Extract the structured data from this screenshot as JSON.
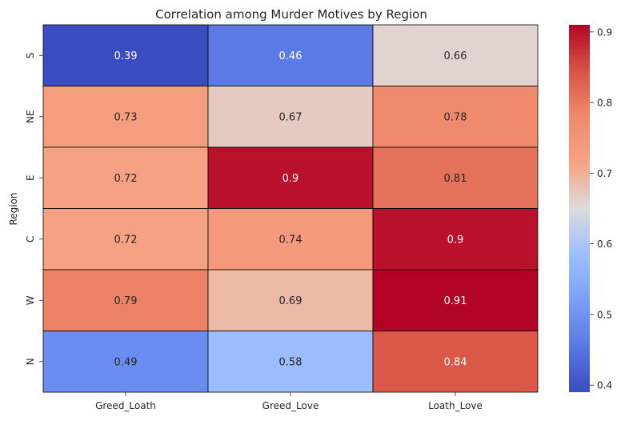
{
  "chart_data": {
    "type": "heatmap",
    "title": "Correlation among Murder Motives by Region",
    "xlabel": "",
    "ylabel": "Region",
    "x_categories": [
      "Greed_Loath",
      "Greed_Love",
      "Loath_Love"
    ],
    "y_categories": [
      "S",
      "NE",
      "E",
      "C",
      "W",
      "N"
    ],
    "values": [
      [
        0.39,
        0.46,
        0.66
      ],
      [
        0.73,
        0.67,
        0.78
      ],
      [
        0.72,
        0.9,
        0.81
      ],
      [
        0.72,
        0.74,
        0.9
      ],
      [
        0.79,
        0.69,
        0.91
      ],
      [
        0.49,
        0.58,
        0.84
      ]
    ],
    "colormap": "coolwarm",
    "vmin": 0.39,
    "vmax": 0.91,
    "colorbar_ticks": [
      0.4,
      0.5,
      0.6,
      0.7,
      0.8,
      0.9
    ],
    "annotations": true,
    "cell_border_color": "#000000"
  }
}
